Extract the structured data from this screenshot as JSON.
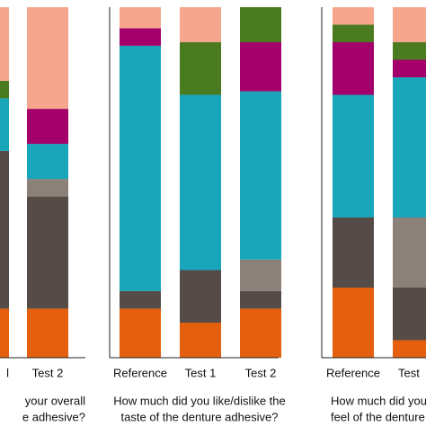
{
  "chart_data": [
    {
      "type": "stacked_bar",
      "categories": [
        "l",
        "Test 2"
      ],
      "ylim": [
        0,
        100
      ],
      "xlabel_lines": [
        "your overall",
        "e adhesive?"
      ],
      "series": [
        {
          "color": "#e4600e",
          "values": [
            14,
            14
          ]
        },
        {
          "color": "#554c48",
          "values": [
            45,
            32
          ]
        },
        {
          "color": "#8c8178",
          "values": [
            0,
            5
          ]
        },
        {
          "color": "#19a6ba",
          "values": [
            15,
            10
          ]
        },
        {
          "color": "#a4006c",
          "values": [
            0,
            10
          ]
        },
        {
          "color": "#4a7b21",
          "values": [
            5,
            0
          ]
        },
        {
          "color": "#f6a68c",
          "values": [
            21,
            29
          ]
        }
      ]
    },
    {
      "type": "stacked_bar",
      "categories": [
        "Reference",
        "Test 1",
        "Test 2"
      ],
      "ylim": [
        0,
        100
      ],
      "xlabel_lines": [
        "How much did you like/dislike the",
        "taste of the denture adhesive?"
      ],
      "series": [
        {
          "color": "#e4600e",
          "values": [
            14,
            10,
            14
          ]
        },
        {
          "color": "#554c48",
          "values": [
            5,
            15,
            5
          ]
        },
        {
          "color": "#8c8178",
          "values": [
            0,
            0,
            9
          ]
        },
        {
          "color": "#19a6ba",
          "values": [
            70,
            50,
            48
          ]
        },
        {
          "color": "#a4006c",
          "values": [
            5,
            0,
            14
          ]
        },
        {
          "color": "#4a7b21",
          "values": [
            0,
            15,
            10
          ]
        },
        {
          "color": "#f6a68c",
          "values": [
            6,
            10,
            0
          ]
        }
      ]
    },
    {
      "type": "stacked_bar",
      "categories": [
        "Reference",
        "Test"
      ],
      "ylim": [
        0,
        100
      ],
      "xlabel_lines": [
        "How much did you",
        "feel of the denture"
      ],
      "series": [
        {
          "color": "#e4600e",
          "values": [
            20,
            5
          ]
        },
        {
          "color": "#554c48",
          "values": [
            20,
            15
          ]
        },
        {
          "color": "#8c8178",
          "values": [
            0,
            20
          ]
        },
        {
          "color": "#19a6ba",
          "values": [
            35,
            40
          ]
        },
        {
          "color": "#a4006c",
          "values": [
            15,
            5
          ]
        },
        {
          "color": "#4a7b21",
          "values": [
            5,
            5
          ]
        },
        {
          "color": "#f6a68c",
          "values": [
            5,
            10
          ]
        }
      ]
    }
  ]
}
